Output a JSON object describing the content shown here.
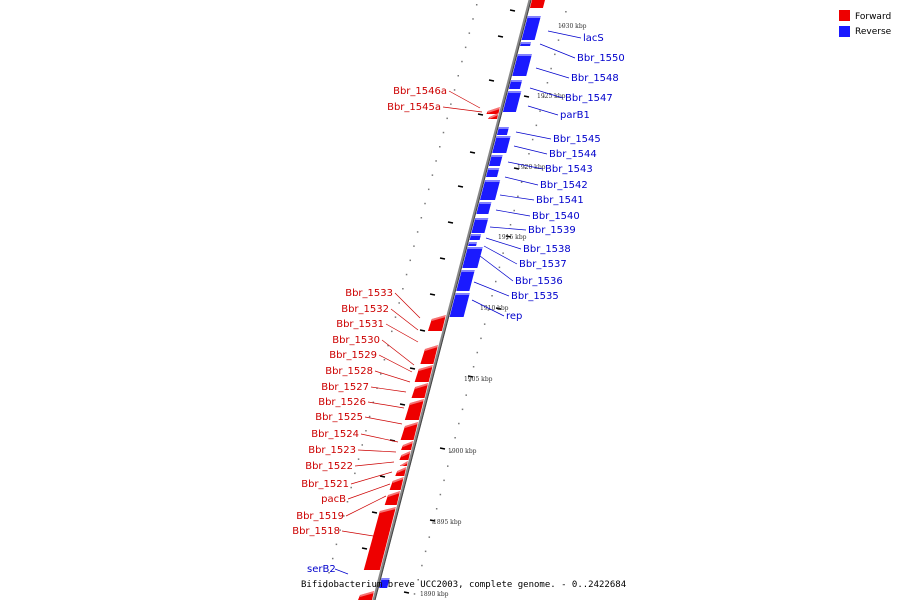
{
  "colors": {
    "forward": "#ee0000",
    "reverse": "#1a1aff",
    "backbone": "#888888",
    "forward_label": "#cc0000",
    "reverse_label": "#0000cc"
  },
  "legend": [
    {
      "label": "Forward",
      "strand": "forward"
    },
    {
      "label": "Reverse",
      "strand": "reverse"
    }
  ],
  "caption": "Bifidobacterium breve UCC2003, complete genome. - 0..2422684",
  "tick_labels": [
    "1930 kbp",
    "1925 kbp",
    "1920 kbp",
    "1915 kbp",
    "1910 kbp",
    "1905 kbp",
    "1900 kbp",
    "1895 kbp",
    "1890 kbp"
  ],
  "reverse_genes": [
    "lacS",
    "Bbr_1550",
    "Bbr_1548",
    "Bbr_1547",
    "parB1",
    "Bbr_1545",
    "Bbr_1544",
    "Bbr_1543",
    "Bbr_1542",
    "Bbr_1541",
    "Bbr_1540",
    "Bbr_1539",
    "Bbr_1538",
    "Bbr_1537",
    "Bbr_1536",
    "Bbr_1535",
    "rep",
    "serB2"
  ],
  "forward_genes": [
    "Bbr_1546a",
    "Bbr_1545a",
    "Bbr_1533",
    "Bbr_1532",
    "Bbr_1531",
    "Bbr_1530",
    "Bbr_1529",
    "Bbr_1528",
    "Bbr_1527",
    "Bbr_1526",
    "Bbr_1525",
    "Bbr_1524",
    "Bbr_1523",
    "Bbr_1522",
    "Bbr_1521",
    "pacB",
    "Bbr_1519",
    "Bbr_1518"
  ]
}
